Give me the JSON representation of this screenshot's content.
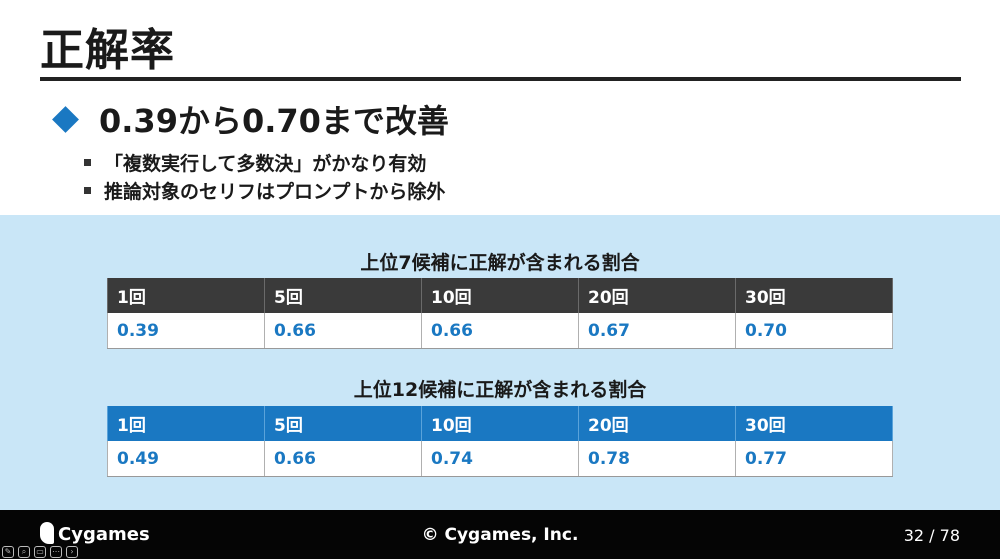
{
  "slide": {
    "title": "正解率",
    "main_bullet": "0.39から0.70まで改善",
    "sub_bullets": [
      "「複数実行して多数決」がかなり有効",
      "推論対象のセリフはプロンプトから除外"
    ]
  },
  "tables": [
    {
      "caption": "上位7候補に正解が含まれる割合",
      "headers": [
        "1回",
        "5回",
        "10回",
        "20回",
        "30回"
      ],
      "values": [
        "0.39",
        "0.66",
        "0.66",
        "0.67",
        "0.70"
      ]
    },
    {
      "caption": "上位12候補に正解が含まれる割合",
      "headers": [
        "1回",
        "5回",
        "10回",
        "20回",
        "30回"
      ],
      "values": [
        "0.49",
        "0.66",
        "0.74",
        "0.78",
        "0.77"
      ]
    }
  ],
  "footer": {
    "logo": "Cygames",
    "copyright": "© Cygames, Inc.",
    "page": "32 / 78"
  },
  "colors": {
    "accent": "#1a78c2",
    "panel": "#c9e6f7",
    "dark_header": "#3a3a3a"
  }
}
